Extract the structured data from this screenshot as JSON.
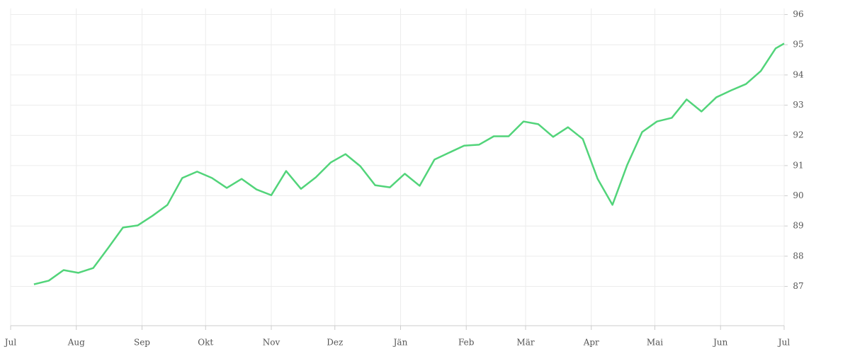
{
  "chart_data": {
    "type": "line",
    "x": [
      11,
      18,
      25,
      32,
      39,
      46,
      53,
      60,
      67,
      74,
      81,
      88,
      95,
      102,
      109,
      116,
      123,
      130,
      137,
      144,
      151,
      158,
      165,
      172,
      179,
      186,
      193,
      200,
      207,
      214,
      221,
      228,
      235,
      242,
      249,
      256,
      263,
      270,
      277,
      284,
      291,
      298,
      305,
      312,
      319,
      326,
      333,
      340,
      347,
      354,
      361,
      365
    ],
    "series": [
      {
        "color": "#52d47a",
        "values": [
          87.07,
          87.19,
          87.54,
          87.45,
          87.61,
          88.27,
          88.95,
          89.02,
          89.34,
          89.7,
          90.59,
          90.8,
          90.59,
          90.26,
          90.56,
          90.21,
          90.02,
          90.82,
          90.23,
          90.61,
          91.1,
          91.38,
          90.98,
          90.35,
          90.28,
          90.73,
          90.33,
          91.2,
          91.43,
          91.66,
          91.69,
          91.97,
          91.97,
          92.46,
          92.37,
          91.95,
          92.27,
          91.88,
          90.56,
          89.7,
          91.03,
          92.11,
          92.46,
          92.58,
          93.19,
          92.79,
          93.26,
          93.49,
          93.7,
          94.13,
          94.88,
          95.04
        ]
      }
    ],
    "xlim": [
      0,
      365
    ],
    "xticks": [
      {
        "value": 0,
        "label": "Jul"
      },
      {
        "value": 31,
        "label": "Aug"
      },
      {
        "value": 62,
        "label": "Sep"
      },
      {
        "value": 92,
        "label": "Okt"
      },
      {
        "value": 123,
        "label": "Nov"
      },
      {
        "value": 153,
        "label": "Dez"
      },
      {
        "value": 184,
        "label": "Jän"
      },
      {
        "value": 215,
        "label": "Feb"
      },
      {
        "value": 243,
        "label": "Mär"
      },
      {
        "value": 274,
        "label": "Apr"
      },
      {
        "value": 304,
        "label": "Mai"
      },
      {
        "value": 335,
        "label": "Jun"
      },
      {
        "value": 365,
        "label": "Jul"
      }
    ],
    "ylim": [
      85.7,
      96.2
    ],
    "yticks": [
      87,
      88,
      89,
      90,
      91,
      92,
      93,
      94,
      95,
      96
    ],
    "grid": true
  }
}
